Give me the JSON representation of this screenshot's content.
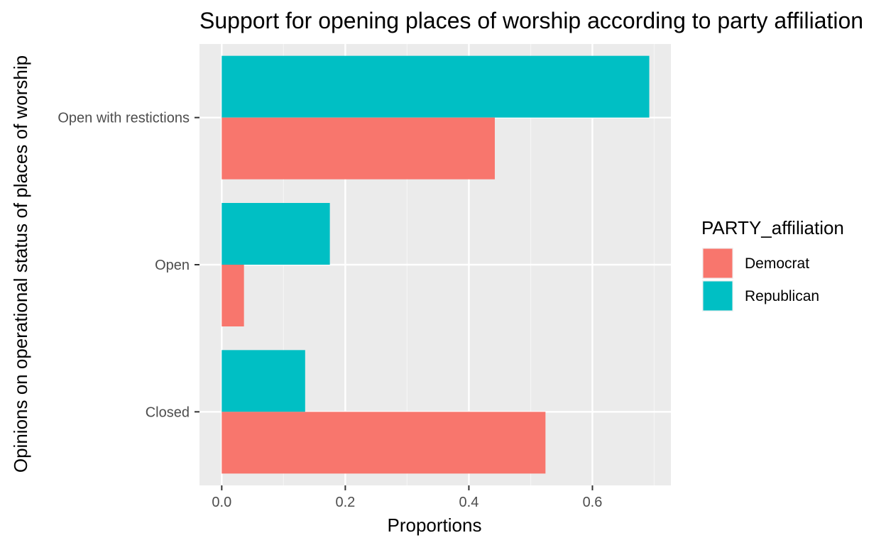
{
  "chart_data": {
    "type": "bar",
    "orientation": "horizontal",
    "title": "Support for opening places of worship according to party affiliation",
    "xlabel": "Proportions",
    "ylabel": "Opinions on operational status of places of worship",
    "categories": [
      "Open with restictions",
      "Open",
      "Closed"
    ],
    "series": [
      {
        "name": "Democrat",
        "color": "#F8766D",
        "values": [
          0.442,
          0.036,
          0.524
        ]
      },
      {
        "name": "Republican",
        "color": "#00BFC4",
        "values": [
          0.692,
          0.175,
          0.135
        ]
      }
    ],
    "x_ticks": [
      0.0,
      0.2,
      0.4,
      0.6
    ],
    "x_tick_labels": [
      "0.0",
      "0.2",
      "0.4",
      "0.6"
    ],
    "xlim": [
      -0.036,
      0.727
    ],
    "grid": true,
    "legend": {
      "title": "PARTY_affiliation",
      "position": "right",
      "entries": [
        "Democrat",
        "Republican"
      ]
    },
    "colors": {
      "panel_background": "#EBEBEB",
      "grid_major": "#FFFFFF",
      "grid_minor": "#F5F5F5"
    }
  }
}
